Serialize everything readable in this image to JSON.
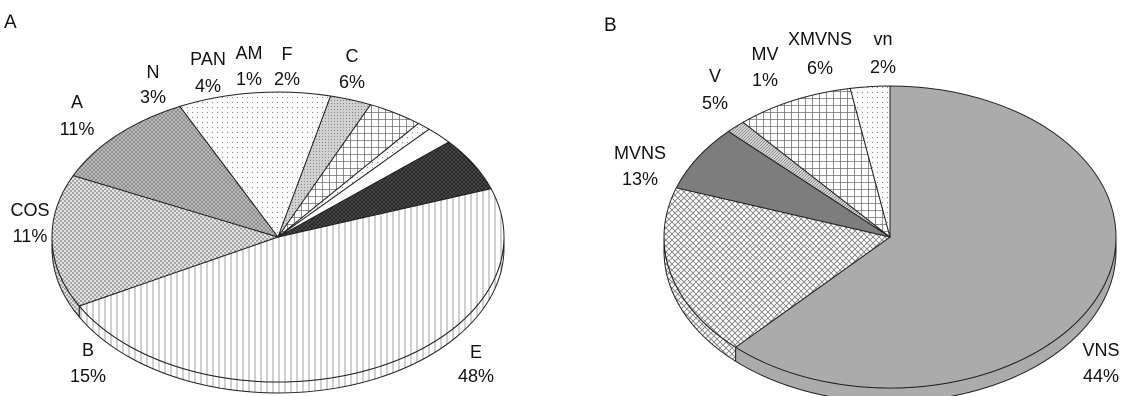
{
  "chart_data": [
    {
      "type": "pie",
      "panel_label": "A",
      "slices": [
        {
          "label": "E",
          "percent_text": "48%",
          "value": 48,
          "pattern": "vlines"
        },
        {
          "label": "B",
          "percent_text": "15%",
          "value": 15,
          "pattern": "dots"
        },
        {
          "label": "COS",
          "percent_text": "11%",
          "value": 11,
          "pattern": "cross"
        },
        {
          "label": "A",
          "percent_text": "11%",
          "value": 11,
          "pattern": "sparse"
        },
        {
          "label": "N",
          "percent_text": "3%",
          "value": 3,
          "pattern": "fine"
        },
        {
          "label": "PAN",
          "percent_text": "4%",
          "value": 4,
          "pattern": "grid"
        },
        {
          "label": "AM",
          "percent_text": "1%",
          "value": 1,
          "pattern": "sparse"
        },
        {
          "label": "F",
          "percent_text": "2%",
          "value": 2,
          "pattern": "white"
        },
        {
          "label": "C",
          "percent_text": "6%",
          "value": 6,
          "pattern": "darkcross"
        }
      ]
    },
    {
      "type": "pie",
      "panel_label": "B",
      "slices": [
        {
          "label": "VNS",
          "percent_text": "44%",
          "value": 44,
          "pattern": "solidgray"
        },
        {
          "label": "MVNS",
          "percent_text": "13%",
          "value": 13,
          "pattern": "diag"
        },
        {
          "label": "V",
          "percent_text": "5%",
          "value": 5,
          "pattern": "darkgray"
        },
        {
          "label": "MV",
          "percent_text": "1%",
          "value": 1,
          "pattern": "hatch"
        },
        {
          "label": "XMVNS",
          "percent_text": "6%",
          "value": 6,
          "pattern": "grid"
        },
        {
          "label": "vn",
          "percent_text": "2%",
          "value": 2,
          "pattern": "sparse"
        }
      ]
    }
  ]
}
